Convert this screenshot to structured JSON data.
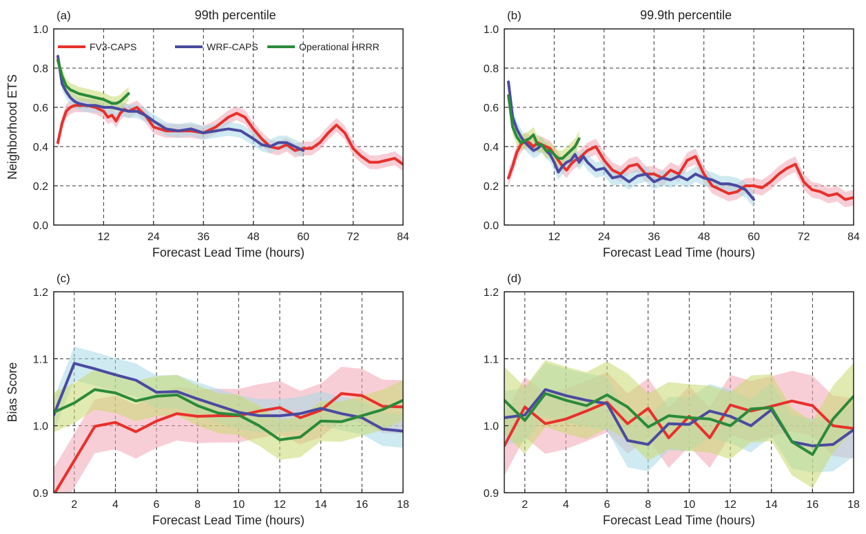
{
  "colors": {
    "FV3-CAPS": "#e8302b",
    "WRF-CAPS": "#4a4aa0",
    "Operational HRRR": "#2a8a3a",
    "band_FV3-CAPS": "#f2a6b4",
    "band_WRF-CAPS": "#a8d8e6",
    "band_Operational HRRR": "#c8d870"
  },
  "chart_data": [
    {
      "panel": "(a)",
      "title": "99th percentile",
      "type": "line",
      "xlabel": "Forecast Lead Time (hours)",
      "ylabel": "Neighborhood ETS",
      "xlim": [
        0,
        84
      ],
      "ylim": [
        0.0,
        1.0
      ],
      "xticks": [
        12,
        24,
        36,
        48,
        60,
        72,
        84
      ],
      "yticks": [
        "0.0",
        "0.2",
        "0.4",
        "0.6",
        "0.8",
        "1.0"
      ],
      "legend": [
        "FV3-CAPS",
        "WRF-CAPS",
        "Operational HRRR"
      ],
      "legend_position": "top-left",
      "grid": true,
      "series": [
        {
          "name": "FV3-CAPS",
          "band": 0.035,
          "x": [
            1,
            2,
            3,
            4,
            5,
            6,
            8,
            10,
            12,
            13,
            14,
            15,
            16,
            17,
            18,
            20,
            22,
            24,
            27,
            30,
            33,
            36,
            39,
            42,
            44,
            46,
            48,
            50,
            52,
            54,
            56,
            58,
            60,
            62,
            64,
            66,
            68,
            70,
            72,
            74,
            76,
            78,
            80,
            82,
            84
          ],
          "y": [
            0.42,
            0.52,
            0.58,
            0.6,
            0.61,
            0.61,
            0.61,
            0.6,
            0.58,
            0.55,
            0.56,
            0.53,
            0.57,
            0.59,
            0.58,
            0.6,
            0.56,
            0.5,
            0.48,
            0.48,
            0.48,
            0.47,
            0.5,
            0.55,
            0.57,
            0.55,
            0.49,
            0.44,
            0.4,
            0.39,
            0.41,
            0.38,
            0.39,
            0.39,
            0.42,
            0.47,
            0.51,
            0.47,
            0.39,
            0.35,
            0.32,
            0.32,
            0.33,
            0.34,
            0.31
          ]
        },
        {
          "name": "WRF-CAPS",
          "band": 0.035,
          "x": [
            1,
            2,
            3,
            4,
            5,
            6,
            8,
            10,
            12,
            14,
            16,
            18,
            20,
            22,
            24,
            27,
            30,
            33,
            36,
            39,
            42,
            45,
            48,
            50,
            52,
            54,
            56,
            58,
            60
          ],
          "y": [
            0.86,
            0.72,
            0.68,
            0.65,
            0.63,
            0.62,
            0.61,
            0.61,
            0.6,
            0.6,
            0.59,
            0.58,
            0.58,
            0.56,
            0.53,
            0.49,
            0.48,
            0.49,
            0.47,
            0.48,
            0.49,
            0.48,
            0.44,
            0.41,
            0.4,
            0.42,
            0.42,
            0.4,
            0.38
          ]
        },
        {
          "name": "Operational HRRR",
          "band": 0.035,
          "x": [
            1,
            2,
            3,
            4,
            5,
            6,
            8,
            10,
            12,
            13,
            14,
            15,
            16,
            17,
            18
          ],
          "y": [
            0.84,
            0.76,
            0.71,
            0.69,
            0.68,
            0.67,
            0.66,
            0.65,
            0.64,
            0.63,
            0.62,
            0.62,
            0.63,
            0.65,
            0.67
          ]
        }
      ]
    },
    {
      "panel": "(b)",
      "title": "99.9th percentile",
      "type": "line",
      "xlabel": "Forecast Lead Time (hours)",
      "ylabel": "",
      "xlim": [
        0,
        84
      ],
      "ylim": [
        0.0,
        1.0
      ],
      "xticks": [
        12,
        24,
        36,
        48,
        60,
        72,
        84
      ],
      "yticks": [
        "0.0",
        "0.2",
        "0.4",
        "0.6",
        "0.8",
        "1.0"
      ],
      "grid": true,
      "series": [
        {
          "name": "FV3-CAPS",
          "band": 0.04,
          "x": [
            1,
            2,
            3,
            4,
            5,
            6,
            7,
            8,
            9,
            10,
            11,
            12,
            13,
            14,
            15,
            16,
            17,
            18,
            20,
            22,
            24,
            26,
            28,
            30,
            32,
            34,
            36,
            38,
            40,
            42,
            44,
            46,
            48,
            50,
            52,
            54,
            56,
            58,
            60,
            62,
            64,
            66,
            68,
            70,
            72,
            74,
            76,
            78,
            80,
            82,
            84
          ],
          "y": [
            0.24,
            0.3,
            0.37,
            0.41,
            0.43,
            0.42,
            0.4,
            0.42,
            0.41,
            0.4,
            0.39,
            0.36,
            0.33,
            0.3,
            0.28,
            0.31,
            0.33,
            0.34,
            0.38,
            0.4,
            0.33,
            0.28,
            0.26,
            0.3,
            0.31,
            0.26,
            0.26,
            0.24,
            0.28,
            0.26,
            0.33,
            0.35,
            0.26,
            0.2,
            0.18,
            0.16,
            0.17,
            0.2,
            0.2,
            0.19,
            0.22,
            0.26,
            0.29,
            0.31,
            0.22,
            0.18,
            0.17,
            0.15,
            0.16,
            0.13,
            0.14
          ]
        },
        {
          "name": "WRF-CAPS",
          "band": 0.04,
          "x": [
            1,
            2,
            3,
            4,
            5,
            6,
            7,
            8,
            9,
            10,
            11,
            12,
            13,
            14,
            15,
            16,
            17,
            18,
            19,
            20,
            22,
            24,
            26,
            28,
            30,
            32,
            34,
            36,
            38,
            40,
            42,
            44,
            46,
            48,
            50,
            52,
            54,
            56,
            58,
            60
          ],
          "y": [
            0.73,
            0.55,
            0.49,
            0.45,
            0.42,
            0.4,
            0.38,
            0.39,
            0.41,
            0.38,
            0.36,
            0.32,
            0.27,
            0.3,
            0.32,
            0.33,
            0.36,
            0.32,
            0.35,
            0.32,
            0.28,
            0.29,
            0.24,
            0.25,
            0.22,
            0.25,
            0.26,
            0.22,
            0.24,
            0.23,
            0.25,
            0.23,
            0.26,
            0.24,
            0.23,
            0.21,
            0.21,
            0.2,
            0.18,
            0.13
          ]
        },
        {
          "name": "Operational HRRR",
          "band": 0.04,
          "x": [
            1,
            2,
            3,
            4,
            5,
            6,
            7,
            8,
            9,
            10,
            11,
            12,
            13,
            14,
            15,
            16,
            17,
            18
          ],
          "y": [
            0.66,
            0.5,
            0.45,
            0.42,
            0.43,
            0.44,
            0.46,
            0.41,
            0.41,
            0.38,
            0.38,
            0.36,
            0.34,
            0.34,
            0.36,
            0.38,
            0.4,
            0.44
          ]
        }
      ]
    },
    {
      "panel": "(c)",
      "title": "",
      "type": "line",
      "xlabel": "Forecast Lead Time (hours)",
      "ylabel": "Bias Score",
      "xlim": [
        1,
        18
      ],
      "ylim": [
        0.9,
        1.2
      ],
      "xticks": [
        2,
        4,
        6,
        8,
        10,
        12,
        14,
        16,
        18
      ],
      "yticks": [
        "0.9",
        "1.0",
        "1.1",
        "1.2"
      ],
      "grid": true,
      "series": [
        {
          "name": "FV3-CAPS",
          "band": 0.04,
          "x": [
            1,
            2,
            3,
            4,
            5,
            6,
            7,
            8,
            9,
            10,
            11,
            12,
            13,
            14,
            15,
            16,
            17,
            18
          ],
          "y": [
            0.897,
            0.948,
            0.999,
            1.005,
            0.991,
            1.007,
            1.018,
            1.014,
            1.015,
            1.015,
            1.022,
            1.027,
            1.012,
            1.023,
            1.048,
            1.045,
            1.029,
            1.028
          ]
        },
        {
          "name": "WRF-CAPS",
          "band": 0.025,
          "x": [
            1,
            2,
            3,
            4,
            5,
            6,
            7,
            8,
            9,
            10,
            11,
            12,
            13,
            14,
            15,
            16,
            17,
            18
          ],
          "y": [
            1.016,
            1.093,
            1.085,
            1.076,
            1.068,
            1.05,
            1.051,
            1.04,
            1.03,
            1.02,
            1.015,
            1.015,
            1.018,
            1.026,
            1.018,
            1.012,
            0.995,
            0.992
          ]
        },
        {
          "name": "Operational HRRR",
          "band": 0.03,
          "x": [
            1,
            2,
            3,
            4,
            5,
            6,
            7,
            8,
            9,
            10,
            11,
            12,
            13,
            14,
            15,
            16,
            17,
            18
          ],
          "y": [
            1.02,
            1.034,
            1.054,
            1.049,
            1.037,
            1.044,
            1.046,
            1.03,
            1.019,
            1.016,
            1.0,
            0.979,
            0.983,
            1.007,
            1.006,
            1.015,
            1.024,
            1.038
          ]
        }
      ]
    },
    {
      "panel": "(d)",
      "title": "",
      "type": "line",
      "xlabel": "Forecast Lead Time (hours)",
      "ylabel": "",
      "xlim": [
        1,
        18
      ],
      "ylim": [
        0.9,
        1.2
      ],
      "xticks": [
        2,
        4,
        6,
        8,
        10,
        12,
        14,
        16,
        18
      ],
      "yticks": [
        "0.9",
        "1.0",
        "1.1",
        "1.2"
      ],
      "grid": true,
      "series": [
        {
          "name": "FV3-CAPS",
          "band": 0.045,
          "x": [
            1,
            2,
            3,
            4,
            5,
            6,
            7,
            8,
            9,
            10,
            11,
            12,
            13,
            14,
            15,
            16,
            17,
            18
          ],
          "y": [
            0.97,
            1.028,
            1.003,
            1.01,
            1.022,
            1.035,
            1.003,
            1.026,
            0.982,
            1.014,
            0.982,
            1.031,
            1.022,
            1.029,
            1.037,
            1.03,
            1.0,
            0.996
          ]
        },
        {
          "name": "WRF-CAPS",
          "band": 0.04,
          "x": [
            1,
            2,
            3,
            4,
            5,
            6,
            7,
            8,
            9,
            10,
            11,
            12,
            13,
            14,
            15,
            16,
            17,
            18
          ],
          "y": [
            1.012,
            1.016,
            1.054,
            1.045,
            1.038,
            1.033,
            0.978,
            0.972,
            1.003,
            1.002,
            1.022,
            1.014,
            1.0,
            1.024,
            0.976,
            0.97,
            0.972,
            0.994
          ]
        },
        {
          "name": "Operational HRRR",
          "band": 0.05,
          "x": [
            1,
            2,
            3,
            4,
            5,
            6,
            7,
            8,
            9,
            10,
            11,
            12,
            13,
            14,
            15,
            16,
            17,
            18
          ],
          "y": [
            1.038,
            1.008,
            1.048,
            1.038,
            1.03,
            1.046,
            1.028,
            0.998,
            1.015,
            1.012,
            1.01,
            1.0,
            1.025,
            1.027,
            0.976,
            0.957,
            1.01,
            1.044
          ]
        }
      ]
    }
  ]
}
